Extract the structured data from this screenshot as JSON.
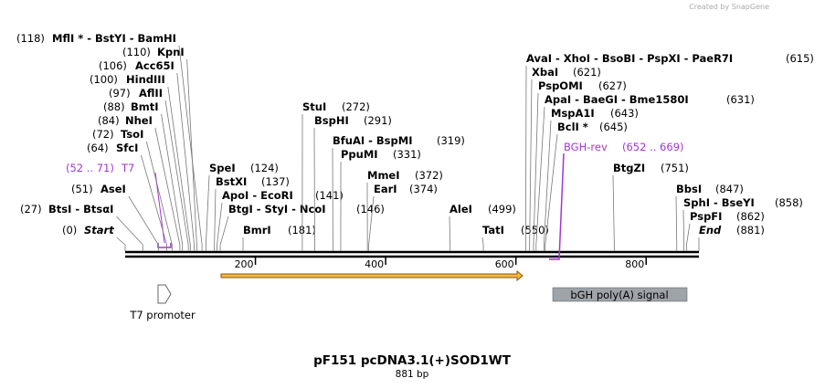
{
  "branding": "Created by SnapGene",
  "title": "pF151 pcDNA3.1(+)SOD1WT",
  "length": "881 bp",
  "ruler": {
    "ticks": [
      200,
      400,
      600,
      800
    ]
  },
  "sites": [
    {
      "names": "MflI * - BstYI - BamHI",
      "position": {
        "value": 118,
        "label": "(118)"
      }
    },
    {
      "names": "KpnI",
      "position": {
        "value": 110,
        "label": "(110)"
      }
    },
    {
      "names": "Acc65I",
      "position": {
        "value": 106,
        "label": "(106)"
      }
    },
    {
      "names": "HindIII",
      "position": {
        "value": 100,
        "label": "(100)"
      }
    },
    {
      "names": "AflII",
      "position": {
        "value": 97,
        "label": "(97)"
      }
    },
    {
      "names": "BmtI",
      "position": {
        "value": 88,
        "label": "(88)"
      }
    },
    {
      "names": "NheI",
      "position": {
        "value": 84,
        "label": "(84)"
      }
    },
    {
      "names": "TsoI",
      "position": {
        "value": 72,
        "label": "(72)"
      }
    },
    {
      "names": "SfcI",
      "position": {
        "value": 64,
        "label": "(64)"
      }
    },
    {
      "names": "AseI",
      "position": {
        "value": 51,
        "label": "(51)"
      }
    },
    {
      "names": "BtsI - BtsαI",
      "position": {
        "value": 27,
        "label": "(27)"
      }
    },
    {
      "names": "Start",
      "position": {
        "value": 0,
        "label": "(0)"
      }
    },
    {
      "names": "SpeI",
      "position": {
        "value": 124,
        "label": "(124)"
      }
    },
    {
      "names": "BstXI",
      "position": {
        "value": 137,
        "label": "(137)"
      }
    },
    {
      "names": "ApoI - EcoRI",
      "position": {
        "value": 141,
        "label": "(141)"
      }
    },
    {
      "names": "BtgI - StyI - NcoI",
      "position": {
        "value": 146,
        "label": "(146)"
      }
    },
    {
      "names": "BmrI",
      "position": {
        "value": 181,
        "label": "(181)"
      }
    },
    {
      "names": "StuI",
      "position": {
        "value": 272,
        "label": "(272)"
      }
    },
    {
      "names": "BspHI",
      "position": {
        "value": 291,
        "label": "(291)"
      }
    },
    {
      "names": "BfuAI - BspMI",
      "position": {
        "value": 319,
        "label": "(319)"
      }
    },
    {
      "names": "PpuMI",
      "position": {
        "value": 331,
        "label": "(331)"
      }
    },
    {
      "names": "MmeI",
      "position": {
        "value": 372,
        "label": "(372)"
      }
    },
    {
      "names": "EarI",
      "position": {
        "value": 374,
        "label": "(374)"
      }
    },
    {
      "names": "AleI",
      "position": {
        "value": 499,
        "label": "(499)"
      }
    },
    {
      "names": "TatI",
      "position": {
        "value": 550,
        "label": "(550)"
      }
    },
    {
      "names": "AvaI - XhoI - BsoBI - PspXI - PaeR7I",
      "position": {
        "value": 615,
        "label": "(615)"
      }
    },
    {
      "names": "XbaI",
      "position": {
        "value": 621,
        "label": "(621)"
      }
    },
    {
      "names": "PspOMI",
      "position": {
        "value": 627,
        "label": "(627)"
      }
    },
    {
      "names": "ApaI - BaeGI - Bme1580I",
      "position": {
        "value": 631,
        "label": "(631)"
      }
    },
    {
      "names": "MspA1I",
      "position": {
        "value": 643,
        "label": "(643)"
      }
    },
    {
      "names": "BclI *",
      "position": {
        "value": 645,
        "label": "(645)"
      }
    },
    {
      "names": "BtgZI",
      "position": {
        "value": 751,
        "label": "(751)"
      }
    },
    {
      "names": "BbsI",
      "position": {
        "value": 847,
        "label": "(847)"
      }
    },
    {
      "names": "SphI - BseYI",
      "position": {
        "value": 858,
        "label": "(858)"
      }
    },
    {
      "names": "PspFI",
      "position": {
        "value": 862,
        "label": "(862)"
      }
    },
    {
      "names": "End",
      "position": {
        "value": 881,
        "label": "(881)"
      }
    }
  ],
  "primers": [
    {
      "name": "T7",
      "range": "(52 .. 71)"
    },
    {
      "name": "BGH-rev",
      "range": "(652 .. 669)"
    }
  ],
  "features": [
    {
      "label": "T7 promoter"
    },
    {
      "label": "bGH poly(A) signal"
    }
  ]
}
